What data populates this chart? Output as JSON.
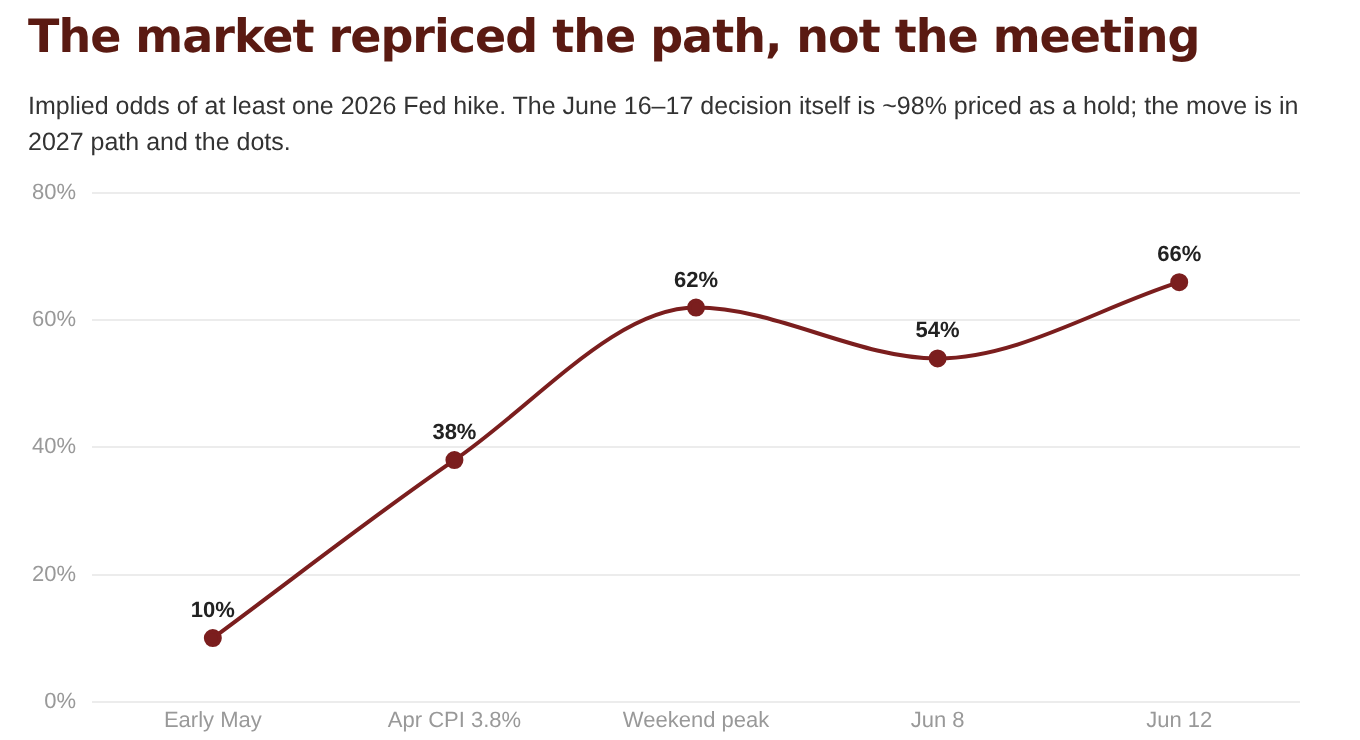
{
  "chart_data": {
    "type": "line",
    "title": "The market repriced the path, not the meeting",
    "subtitle": "Implied odds of at least one 2026 Fed hike. The June 16–17 decision itself is ~98% priced as a hold; the move is in 2027 path and the dots.",
    "categories": [
      "Early May",
      "Apr CPI 3.8%",
      "Weekend peak",
      "Jun 8",
      "Jun 12"
    ],
    "series": [
      {
        "color": "#7b1e1e",
        "values": [
          10,
          38,
          62,
          54,
          66
        ],
        "value_labels": [
          "10%",
          "38%",
          "62%",
          "54%",
          "66%"
        ]
      }
    ],
    "ylim": [
      0,
      80
    ],
    "yticks": [
      {
        "value": 0,
        "label": "0%"
      },
      {
        "value": 20,
        "label": "20%"
      },
      {
        "value": 40,
        "label": "40%"
      },
      {
        "value": 60,
        "label": "60%"
      },
      {
        "value": 80,
        "label": "80%"
      }
    ],
    "grid": "y",
    "legend": false,
    "marker": "circle",
    "line_style": "solid"
  }
}
